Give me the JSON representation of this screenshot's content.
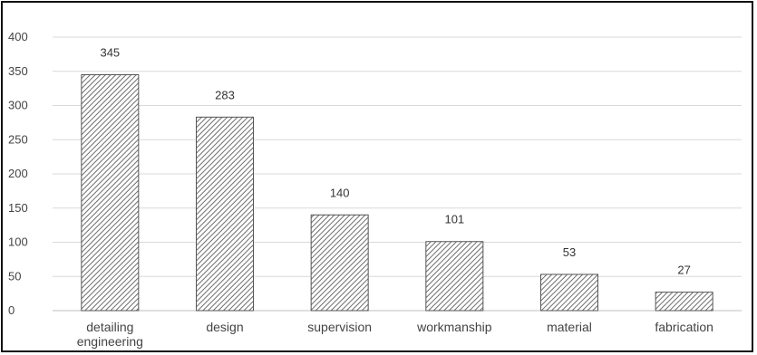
{
  "chart_data": {
    "type": "bar",
    "title": "",
    "xlabel": "",
    "ylabel": "",
    "categories": [
      [
        "detailing",
        "engineering"
      ],
      [
        "design"
      ],
      [
        "supervision"
      ],
      [
        "workmanship"
      ],
      [
        "material"
      ],
      [
        "fabrication"
      ]
    ],
    "values": [
      345,
      283,
      140,
      101,
      53,
      27
    ],
    "ylim": [
      0,
      400
    ],
    "yticks": [
      0,
      50,
      100,
      150,
      200,
      250,
      300,
      350,
      400
    ],
    "grid": true,
    "legend": "none",
    "bar_fill": "hatched",
    "colors": {
      "bar_stroke": "#555555",
      "hatch": "#6e6e6e",
      "grid": "#d9d9d9",
      "frame": "#111111"
    }
  }
}
